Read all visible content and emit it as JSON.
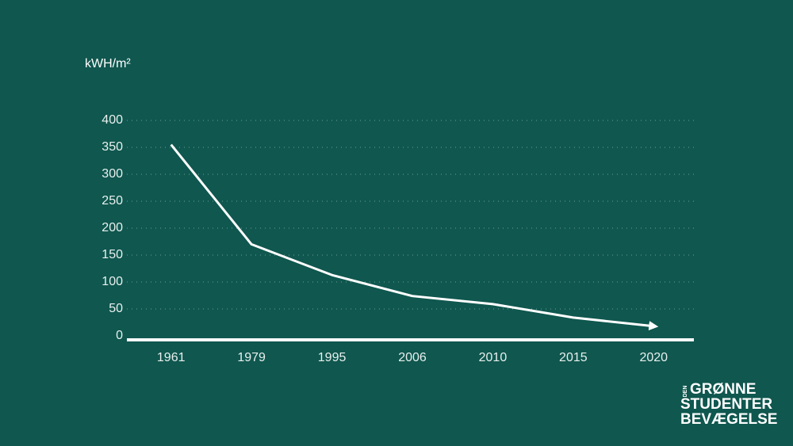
{
  "chart_data": {
    "type": "line",
    "y_axis_label": "kWH/m²",
    "categories": [
      "1961",
      "1979",
      "1995",
      "2006",
      "2010",
      "2015",
      "2020"
    ],
    "series": [
      {
        "color": "#ffffff",
        "values": [
          355,
          170,
          113,
          74,
          59,
          34,
          18
        ]
      }
    ],
    "ylim": [
      0,
      400
    ],
    "yticks": [
      0,
      50,
      100,
      150,
      200,
      250,
      300,
      350,
      400
    ],
    "grid": true
  },
  "logo": {
    "small": "DEN",
    "lines": [
      "GRØNNE",
      "STUDENTER",
      "BEVÆGELSE"
    ]
  }
}
